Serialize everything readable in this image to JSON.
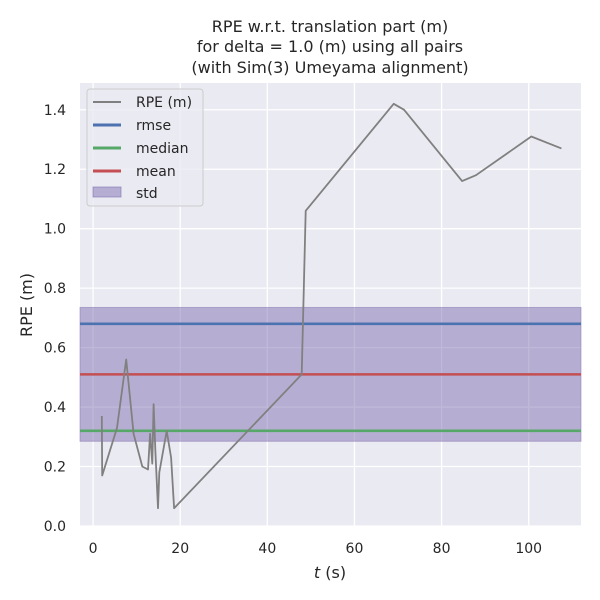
{
  "chart_data": {
    "type": "line",
    "title_lines": [
      "RPE w.r.t. translation part (m)",
      "for delta = 1.0 (m) using all pairs",
      "(with Sim(3) Umeyama alignment)"
    ],
    "xlabel_var": "t",
    "xlabel_unit": " (s)",
    "ylabel": "RPE (m)",
    "xlim": [
      -3,
      112
    ],
    "ylim": [
      0,
      1.49
    ],
    "x_ticks": [
      0,
      20,
      40,
      60,
      80,
      100
    ],
    "y_ticks": [
      0.0,
      0.2,
      0.4,
      0.6,
      0.8,
      1.0,
      1.2,
      1.4
    ],
    "x_tick_labels": [
      "0",
      "20",
      "40",
      "60",
      "80",
      "100"
    ],
    "y_tick_labels": [
      "0.0",
      "0.2",
      "0.4",
      "0.6",
      "0.8",
      "1.0",
      "1.2",
      "1.4"
    ],
    "grid": true,
    "legend_position": "upper-left",
    "background_color": "#eaeaf2",
    "series": [
      {
        "name": "RPE (m)",
        "color": "#808080",
        "x": [
          2.0,
          2.1,
          5.5,
          7.6,
          9.3,
          11.3,
          12.6,
          13.1,
          13.6,
          13.9,
          14.3,
          14.9,
          15.2,
          16.9,
          17.9,
          18.6,
          47.9,
          48.8,
          69.0,
          71.4,
          84.7,
          87.9,
          100.6,
          107.5
        ],
        "y": [
          0.37,
          0.17,
          0.33,
          0.56,
          0.31,
          0.2,
          0.19,
          0.31,
          0.21,
          0.41,
          0.25,
          0.06,
          0.18,
          0.32,
          0.23,
          0.06,
          0.51,
          1.06,
          1.42,
          1.4,
          1.16,
          1.18,
          1.31,
          1.27
        ]
      }
    ],
    "stats": {
      "rmse": {
        "label": "rmse",
        "value": 0.68,
        "color": "#4c72b0"
      },
      "median": {
        "label": "median",
        "value": 0.32,
        "color": "#55a868"
      },
      "mean": {
        "label": "mean",
        "value": 0.51,
        "color": "#c44e52"
      },
      "std": {
        "label": "std",
        "low": 0.285,
        "high": 0.735,
        "color": "#8172b2"
      }
    }
  }
}
